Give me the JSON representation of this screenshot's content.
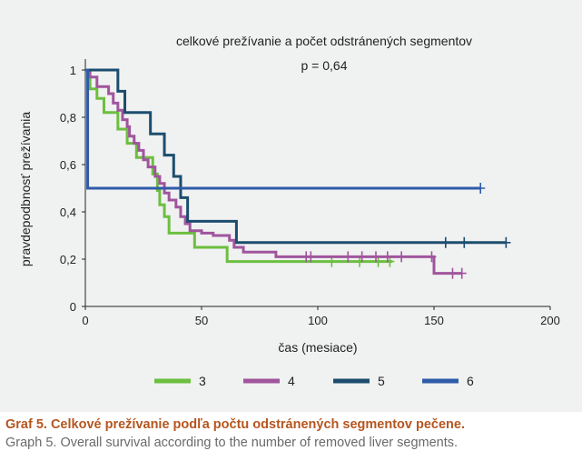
{
  "chart_data": {
    "type": "line",
    "step": true,
    "title": "celkové prežívanie a počet odstránených segmentov",
    "subtitle": "p = 0,64",
    "xlabel": "čas (mesiace)",
    "ylabel": "pravdepodbnosť prežívania",
    "xlim": [
      0,
      200
    ],
    "ylim": [
      0,
      1
    ],
    "xticks": [
      0,
      50,
      100,
      150,
      200
    ],
    "yticks": [
      0,
      0.2,
      0.4,
      0.6,
      0.8,
      1
    ],
    "xtick_labels": [
      "0",
      "50",
      "100",
      "150",
      "200"
    ],
    "ytick_labels": [
      "0",
      "0,2",
      "0,4",
      "0,6",
      "0,8",
      "1"
    ],
    "grid": false,
    "legend_position": "bottom",
    "series": [
      {
        "name": "3",
        "color": "#6cbf3f",
        "x": [
          0,
          1,
          2,
          5,
          8,
          14,
          18,
          22,
          29,
          31,
          32,
          34,
          36,
          47,
          61,
          132
        ],
        "y": [
          1,
          0.96,
          0.92,
          0.88,
          0.82,
          0.75,
          0.69,
          0.63,
          0.56,
          0.49,
          0.43,
          0.38,
          0.31,
          0.25,
          0.19,
          0.19
        ],
        "censored_x": [
          106,
          118,
          126,
          131
        ],
        "censored_y": [
          0.19,
          0.19,
          0.19,
          0.19
        ]
      },
      {
        "name": "4",
        "color": "#a0559d",
        "x": [
          0,
          2,
          5,
          10,
          12,
          14,
          16,
          18,
          19,
          21,
          23,
          25,
          27,
          30,
          32,
          34,
          36,
          39,
          41,
          43,
          45,
          50,
          55,
          62,
          64,
          68,
          70,
          82,
          150,
          153,
          162
        ],
        "y": [
          1,
          0.97,
          0.93,
          0.9,
          0.86,
          0.83,
          0.79,
          0.76,
          0.72,
          0.69,
          0.66,
          0.62,
          0.59,
          0.55,
          0.52,
          0.48,
          0.45,
          0.42,
          0.38,
          0.35,
          0.32,
          0.31,
          0.3,
          0.28,
          0.25,
          0.23,
          0.23,
          0.21,
          0.14,
          0.14,
          0.14
        ],
        "censored_x": [
          95,
          97,
          113,
          119,
          125,
          130,
          136,
          149,
          158,
          162
        ],
        "censored_y": [
          0.21,
          0.21,
          0.21,
          0.21,
          0.21,
          0.21,
          0.21,
          0.21,
          0.14,
          0.14
        ]
      },
      {
        "name": "5",
        "color": "#1c4d6e",
        "x": [
          0,
          1,
          14,
          17,
          28,
          34,
          38,
          41,
          44,
          54,
          65,
          80,
          181
        ],
        "y": [
          1,
          1,
          0.91,
          0.82,
          0.73,
          0.64,
          0.55,
          0.46,
          0.36,
          0.36,
          0.27,
          0.27,
          0.27
        ],
        "censored_x": [
          155,
          163,
          181
        ],
        "censored_y": [
          0.27,
          0.27,
          0.27
        ]
      },
      {
        "name": "6",
        "color": "#2f5ca8",
        "x": [
          0,
          0.5,
          1,
          170
        ],
        "y": [
          1,
          1,
          0.5,
          0.5
        ],
        "censored_x": [
          170
        ],
        "censored_y": [
          0.5
        ]
      }
    ]
  },
  "caption": {
    "bold": "Graf 5. Celkové prežívanie podľa počtu odstránených segmentov pečene.",
    "normal": "Graph 5. Overall survival according to the number of removed liver segments."
  }
}
